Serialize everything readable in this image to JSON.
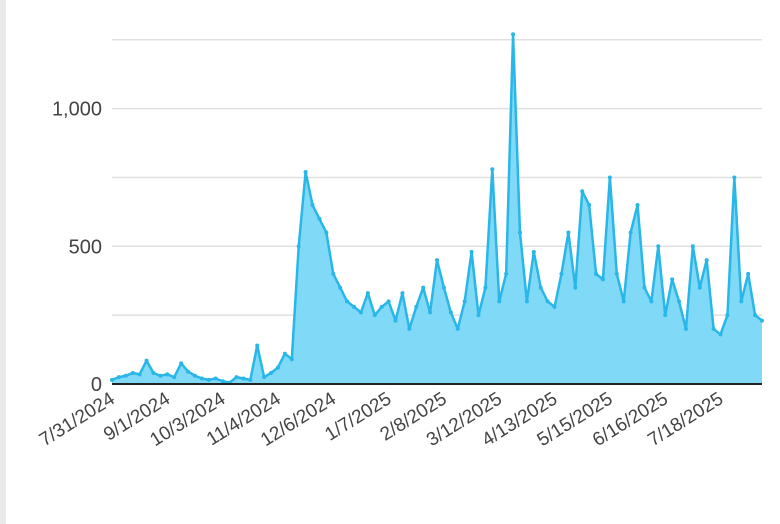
{
  "chart_data": {
    "type": "area",
    "categories": [
      "7/31/2024",
      null,
      null,
      null,
      null,
      null,
      null,
      null,
      "9/1/2024",
      null,
      null,
      null,
      null,
      null,
      null,
      null,
      "10/3/2024",
      null,
      null,
      null,
      null,
      null,
      null,
      null,
      "11/4/2024",
      null,
      null,
      null,
      null,
      null,
      null,
      null,
      "12/6/2024",
      null,
      null,
      null,
      null,
      null,
      null,
      null,
      "1/7/2025",
      null,
      null,
      null,
      null,
      null,
      null,
      null,
      "2/8/2025",
      null,
      null,
      null,
      null,
      null,
      null,
      null,
      "3/12/2025",
      null,
      null,
      null,
      null,
      null,
      null,
      null,
      "4/13/2025",
      null,
      null,
      null,
      null,
      null,
      null,
      null,
      "5/15/2025",
      null,
      null,
      null,
      null,
      null,
      null,
      null,
      "6/16/2025",
      null,
      null,
      null,
      null,
      null,
      null,
      null,
      "7/18/2025",
      null,
      null,
      null,
      null,
      null,
      null
    ],
    "values": [
      15,
      25,
      30,
      40,
      35,
      85,
      40,
      30,
      35,
      25,
      75,
      45,
      30,
      20,
      15,
      20,
      10,
      5,
      25,
      20,
      15,
      140,
      25,
      40,
      60,
      110,
      90,
      500,
      770,
      650,
      600,
      550,
      400,
      350,
      300,
      280,
      260,
      330,
      250,
      280,
      300,
      230,
      330,
      200,
      280,
      350,
      260,
      450,
      350,
      260,
      200,
      300,
      480,
      250,
      350,
      780,
      300,
      400,
      1270,
      550,
      300,
      480,
      350,
      300,
      280,
      400,
      550,
      350,
      700,
      650,
      400,
      380,
      750,
      400,
      300,
      550,
      650,
      350,
      300,
      500,
      250,
      380,
      300,
      200,
      500,
      350,
      450,
      200,
      180,
      250,
      750,
      300,
      400,
      250,
      230
    ],
    "color": "#29b6e8",
    "fill": "#80d9f6",
    "ylim": [
      0,
      1300
    ],
    "yticks": [
      0,
      500,
      {
        "value": 1000,
        "label": "1,000"
      }
    ],
    "ygrid": [
      0,
      250,
      500,
      750,
      1000,
      1250
    ],
    "grid": true
  }
}
